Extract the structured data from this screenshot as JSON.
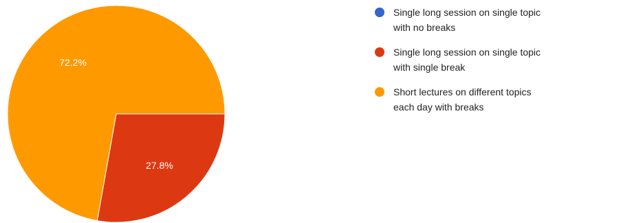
{
  "chart_data": {
    "type": "pie",
    "slices": [
      {
        "label": "Single long session on single topic with no breaks",
        "value": 0,
        "display": "",
        "color": "#3366cc"
      },
      {
        "label": "Single long session on single topic with single break",
        "value": 27.8,
        "display": "27.8%",
        "color": "#dc3912"
      },
      {
        "label": "Short lectures on different topics each day with breaks",
        "value": 72.2,
        "display": "72.2%",
        "color": "#ff9900"
      }
    ],
    "legend": {
      "placement": "right",
      "items": [
        {
          "lines": [
            "Single long session on single topic",
            "with no breaks"
          ],
          "color": "#3366cc"
        },
        {
          "lines": [
            "Single long session on single topic",
            "with single break"
          ],
          "color": "#dc3912"
        },
        {
          "lines": [
            "Short lectures on different topics",
            "each day with breaks"
          ],
          "color": "#ff9900"
        }
      ]
    }
  }
}
